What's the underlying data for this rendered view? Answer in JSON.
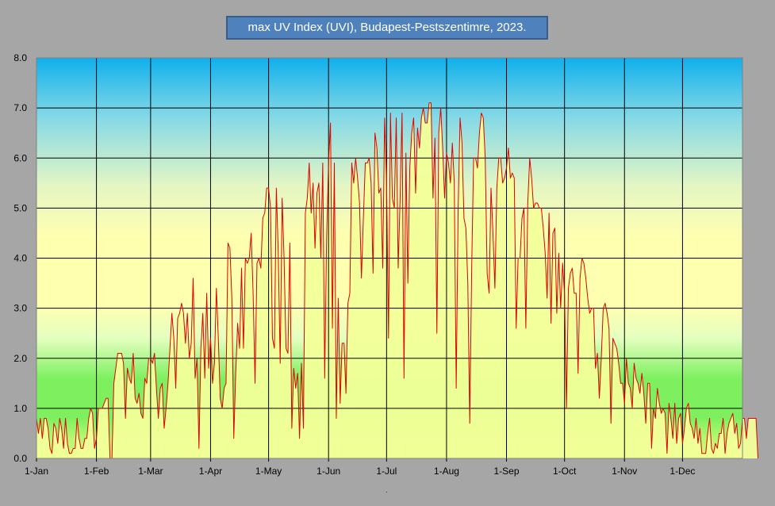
{
  "chart_data": {
    "type": "area",
    "title": "max UV Index (UVI), Budapest-Pestszentimre,  2023.",
    "xlabel": "",
    "ylabel": "",
    "ylim": [
      0,
      8
    ],
    "yticks": [
      "0.0",
      "1.0",
      "2.0",
      "3.0",
      "4.0",
      "5.0",
      "6.0",
      "7.0",
      "8.0"
    ],
    "xlim": [
      0,
      365
    ],
    "xticks": [
      {
        "day": 0,
        "label": "1-Jan"
      },
      {
        "day": 31,
        "label": "1-Feb"
      },
      {
        "day": 59,
        "label": "1-Mar"
      },
      {
        "day": 90,
        "label": "1-Apr"
      },
      {
        "day": 120,
        "label": "1-May"
      },
      {
        "day": 151,
        "label": "1-Jun"
      },
      {
        "day": 181,
        "label": "1-Jul"
      },
      {
        "day": 212,
        "label": "1-Aug"
      },
      {
        "day": 243,
        "label": "1-Sep"
      },
      {
        "day": 273,
        "label": "1-Oct"
      },
      {
        "day": 304,
        "label": "1-Nov"
      },
      {
        "day": 334,
        "label": "1-Dec"
      }
    ],
    "grid": true,
    "colors": {
      "line": "#e00000",
      "fill": "#f2ff99",
      "grid": "#000000"
    },
    "series": [
      {
        "name": "",
        "values": [
          0.8,
          0.5,
          0.8,
          0.4,
          0.8,
          0.8,
          0.6,
          0.2,
          0.1,
          0.7,
          0.6,
          0.3,
          0.8,
          0.6,
          0.2,
          0.8,
          0.3,
          0.1,
          0.1,
          0.2,
          0.2,
          0.8,
          0.4,
          0.2,
          0.2,
          0.4,
          0.4,
          0.8,
          1.0,
          0.9,
          0.2,
          0.4,
          1.0,
          1.0,
          1.0,
          1.1,
          1.2,
          1.2,
          0.0,
          0.0,
          1.5,
          1.8,
          2.1,
          2.1,
          2.1,
          1.9,
          0.8,
          1.8,
          1.6,
          1.5,
          2.1,
          1.2,
          1.1,
          1.3,
          0.9,
          0.8,
          1.6,
          1.5,
          2.0,
          2.0,
          1.9,
          2.1,
          1.4,
          0.8,
          1.4,
          1.5,
          0.6,
          1.0,
          1.5,
          2.2,
          2.9,
          2.4,
          1.4,
          2.8,
          2.9,
          3.1,
          2.9,
          2.3,
          2.9,
          2.0,
          2.3,
          3.6,
          1.6,
          2.0,
          0.2,
          2.2,
          2.9,
          1.6,
          3.3,
          1.8,
          2.4,
          1.5,
          1.9,
          3.4,
          2.4,
          1.2,
          1.0,
          1.4,
          1.5,
          4.3,
          4.2,
          3.2,
          0.4,
          1.7,
          2.7,
          2.2,
          3.8,
          2.2,
          4.0,
          3.9,
          4.0,
          4.5,
          3.3,
          1.5,
          3.9,
          4.0,
          3.8,
          4.8,
          4.9,
          5.4,
          5.4,
          5.0,
          2.4,
          2.2,
          5.4,
          4.1,
          1.9,
          5.2,
          4.0,
          2.2,
          2.1,
          4.3,
          0.6,
          1.8,
          1.4,
          1.7,
          0.4,
          1.9,
          0.6,
          4.9,
          5.2,
          5.9,
          4.9,
          5.5,
          4.2,
          5.3,
          5.5,
          4.0,
          5.9,
          1.6,
          4.4,
          5.9,
          6.7,
          2.6,
          5.9,
          0.8,
          3.2,
          1.1,
          2.3,
          2.3,
          1.3,
          3.1,
          3.3,
          5.9,
          5.5,
          6.0,
          5.6,
          5.1,
          3.6,
          4.8,
          5.9,
          5.9,
          6.0,
          5.5,
          3.7,
          6.5,
          6.2,
          5.3,
          5.4,
          3.8,
          6.8,
          5.5,
          2.4,
          6.9,
          5.2,
          5.0,
          6.8,
          3.8,
          5.2,
          6.9,
          1.6,
          6.1,
          3.5,
          5.8,
          6.5,
          6.8,
          5.3,
          6.6,
          6.2,
          6.8,
          7.0,
          6.7,
          6.7,
          7.1,
          7.1,
          5.2,
          6.4,
          2.5,
          6.5,
          7.0,
          6.2,
          5.2,
          6.1,
          5.9,
          5.5,
          6.3,
          5.5,
          1.4,
          5.0,
          6.8,
          6.3,
          4.8,
          4.6,
          3.5,
          0.7,
          3.8,
          6.0,
          6.0,
          5.8,
          6.5,
          6.9,
          6.8,
          6.0,
          3.7,
          3.3,
          5.4,
          4.5,
          3.4,
          5.4,
          6.0,
          6.0,
          5.5,
          5.6,
          5.8,
          6.2,
          5.6,
          5.7,
          5.6,
          2.6,
          4.0,
          4.0,
          4.8,
          5.0,
          2.6,
          5.1,
          6.0,
          5.6,
          5.0,
          5.1,
          5.1,
          5.0,
          5.0,
          4.6,
          4.1,
          3.2,
          4.9,
          2.7,
          4.5,
          4.6,
          2.9,
          4.1,
          3.0,
          3.9,
          3.3,
          1.0,
          3.4,
          3.7,
          3.8,
          3.3,
          3.3,
          1.7,
          3.6,
          4.0,
          3.9,
          3.6,
          3.2,
          2.9,
          3.0,
          3.0,
          1.8,
          2.1,
          1.2,
          2.0,
          3.0,
          3.1,
          2.9,
          2.6,
          0.7,
          2.4,
          2.3,
          2.2,
          1.9,
          1.5,
          1.5,
          1.1,
          2.0,
          1.5,
          1.4,
          1.0,
          1.9,
          1.6,
          1.5,
          1.3,
          1.7,
          1.3,
          0.7,
          1.5,
          1.5,
          0.2,
          1.0,
          0.8,
          1.4,
          1.1,
          0.9,
          1.0,
          0.9,
          0.1,
          1.1,
          0.8,
          0.4,
          1.1,
          0.3,
          0.8,
          0.9,
          0.3,
          0.6,
          1.0,
          1.1,
          0.7,
          0.6,
          0.4,
          0.8,
          0.3,
          0.6,
          0.1,
          0.1,
          0.1,
          0.5,
          0.8,
          0.2,
          0.1,
          0.3,
          0.2,
          0.5,
          0.5,
          0.8,
          0.1,
          0.5,
          0.7,
          0.8,
          0.9,
          0.5,
          0.7,
          0.2,
          0.3,
          0.8,
          0.8,
          0.4,
          0.8,
          0.8,
          0.8,
          0.8,
          0.8,
          0.0
        ]
      }
    ]
  }
}
